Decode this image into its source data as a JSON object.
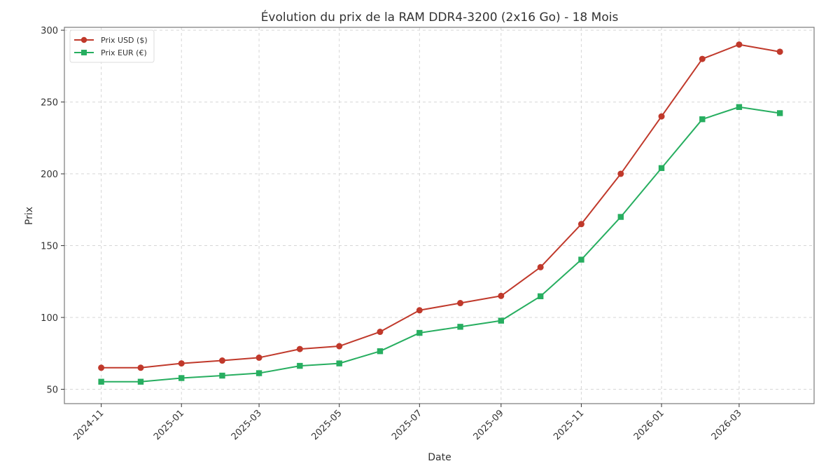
{
  "chart_data": {
    "type": "line",
    "title": "Évolution du prix de la RAM DDR4-3200 (2x16 Go) - 18 Mois",
    "xlabel": "Date",
    "ylabel": "Prix",
    "x": [
      "2024-11-01",
      "2024-12-01",
      "2025-01-01",
      "2025-02-01",
      "2025-03-01",
      "2025-04-01",
      "2025-05-01",
      "2025-06-01",
      "2025-07-01",
      "2025-08-01",
      "2025-09-01",
      "2025-10-01",
      "2025-11-01",
      "2025-12-01",
      "2026-01-01",
      "2026-02-01",
      "2026-03-01",
      "2026-04-01"
    ],
    "series": [
      {
        "name": "Prix USD ($)",
        "color": "#c0392b",
        "marker": "circle",
        "values": [
          65,
          65,
          68,
          70,
          72,
          78,
          80,
          90,
          105,
          110,
          115,
          135,
          165,
          200,
          240,
          280,
          290,
          285
        ]
      },
      {
        "name": "Prix EUR (€)",
        "color": "#27ae60",
        "marker": "square",
        "values": [
          55.25,
          55.25,
          57.8,
          59.5,
          61.2,
          66.3,
          68,
          76.5,
          89.25,
          93.5,
          97.75,
          114.75,
          140.25,
          170,
          204,
          238,
          246.5,
          242.25
        ]
      }
    ],
    "xticks": [
      "2024-11",
      "2025-01",
      "2025-03",
      "2025-05",
      "2025-07",
      "2025-09",
      "2025-11",
      "2026-01",
      "2026-03"
    ],
    "yticks": [
      50,
      100,
      150,
      200,
      250,
      300
    ],
    "ylim": [
      40,
      302
    ],
    "xlim": [
      "2024-10-04",
      "2026-04-27"
    ],
    "grid": true,
    "legend": "top-left"
  }
}
